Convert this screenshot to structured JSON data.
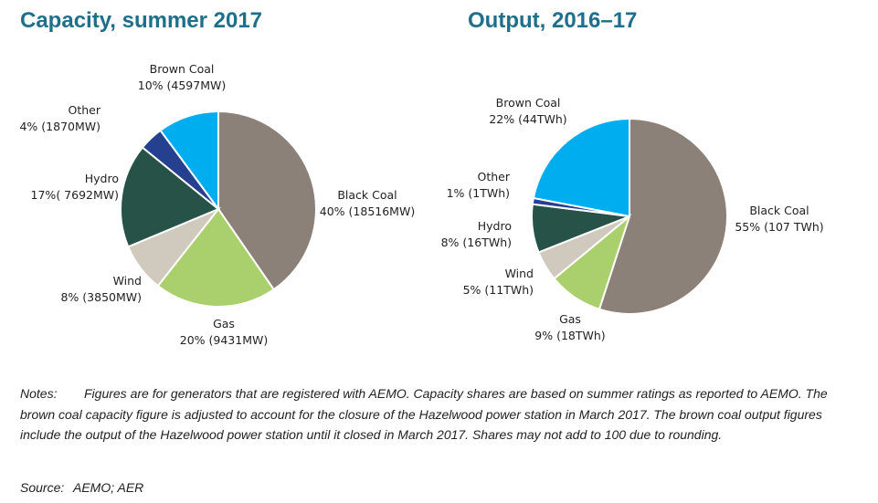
{
  "colors": {
    "title": "#1f6f8b",
    "black_coal": "#8b8178",
    "gas": "#a9d06c",
    "wind": "#d0c9bd",
    "hydro": "#275247",
    "other": "#25408f",
    "brown_coal": "#00aeef"
  },
  "chart_data": [
    {
      "type": "pie",
      "title": "Capacity, summer 2017",
      "slices": [
        {
          "name": "Black Coal",
          "value": 40,
          "label": "40% (18516MW)",
          "color": "#8b8178"
        },
        {
          "name": "Gas",
          "value": 20,
          "label": "20% (9431MW)",
          "color": "#a9d06c"
        },
        {
          "name": "Wind",
          "value": 8,
          "label": "8% (3850MW)",
          "color": "#d0c9bd"
        },
        {
          "name": "Hydro",
          "value": 17,
          "label": "17%( 7692MW)",
          "color": "#275247"
        },
        {
          "name": "Other",
          "value": 4,
          "label": "4% (1870MW)",
          "color": "#25408f"
        },
        {
          "name": "Brown Coal",
          "value": 10,
          "label": "10% (4597MW)",
          "color": "#00aeef"
        }
      ]
    },
    {
      "type": "pie",
      "title": "Output, 2016–17",
      "slices": [
        {
          "name": "Black Coal",
          "value": 55,
          "label": "55% (107 TWh)",
          "color": "#8b8178"
        },
        {
          "name": "Gas",
          "value": 9,
          "label": "9% (18TWh)",
          "color": "#a9d06c"
        },
        {
          "name": "Wind",
          "value": 5,
          "label": "5% (11TWh)",
          "color": "#d0c9bd"
        },
        {
          "name": "Hydro",
          "value": 8,
          "label": "8% (16TWh)",
          "color": "#275247"
        },
        {
          "name": "Other",
          "value": 1,
          "label": "1% (1TWh)",
          "color": "#25408f"
        },
        {
          "name": "Brown Coal",
          "value": 22,
          "label": "22% (44TWh)",
          "color": "#00aeef"
        }
      ]
    }
  ],
  "notes": {
    "label": "Notes:",
    "text": "Figures are for generators that are registered with AEMO. Capacity shares are based on summer ratings as reported to AEMO. The brown coal capacity figure is adjusted to account for the closure of the Hazelwood power station in March 2017. The brown coal output figures include the output of the Hazelwood power station until it closed in March 2017. Shares may not add to 100 due to rounding."
  },
  "source": {
    "label": "Source:",
    "text": "AEMO; AER"
  }
}
